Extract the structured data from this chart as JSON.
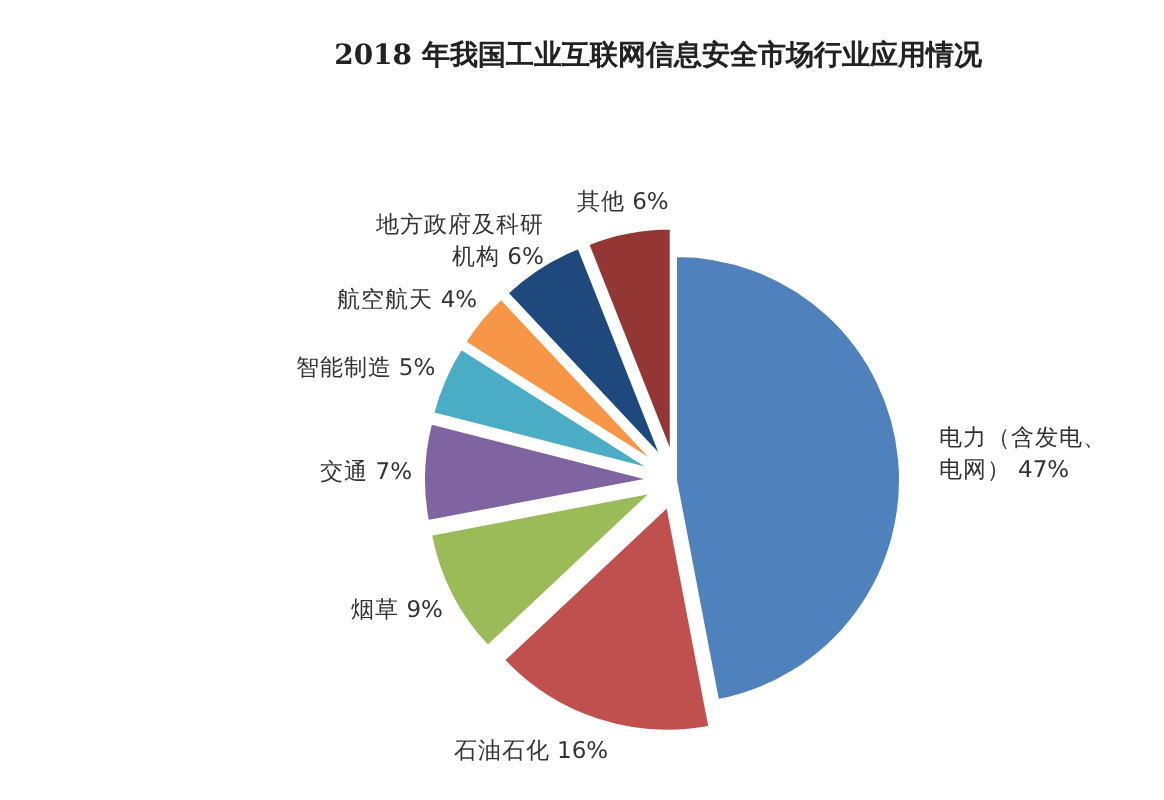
{
  "chart_data": {
    "type": "pie",
    "title": "2018 年我国工业互联网信息安全市场行业应用情况",
    "categories": [
      "电力（含发电、电网）",
      "石油石化",
      "烟草",
      "交通",
      "智能制造",
      "航空航天",
      "地方政府及科研机构",
      "其他"
    ],
    "values": [
      47,
      16,
      9,
      7,
      5,
      4,
      6,
      6
    ],
    "value_labels": [
      "47%",
      "16%",
      "9%",
      "7%",
      "5%",
      "4%",
      "6%",
      "6%"
    ],
    "colors": [
      "#4f81bd",
      "#c0504d",
      "#9bbb59",
      "#8064a2",
      "#4bacc6",
      "#f79646",
      "#1f497d",
      "#943634"
    ]
  }
}
